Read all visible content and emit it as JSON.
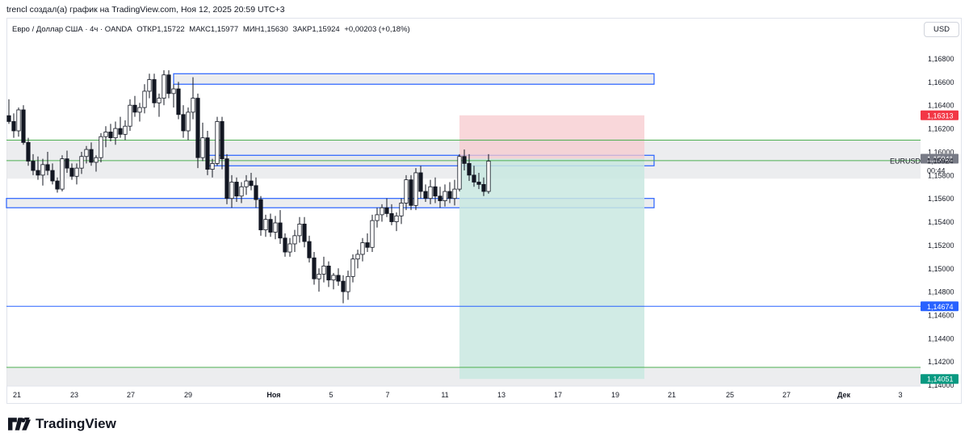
{
  "caption": "trencl создал(а) график на TradingView.com, Ноя 12, 2025 20:59 UTC+3",
  "legend": {
    "symbol": "Евро / Доллар США · 4ч · OANDA",
    "open": "ОТКР1,15722",
    "high": "МАКС1,15977",
    "low": "МИН1,15630",
    "close": "ЗАКР1,15924",
    "change": "+0,00203 (+0,18%)"
  },
  "currency_button": "USD",
  "brand": "TradingView",
  "colors": {
    "up": "#ffffff",
    "down": "#131722",
    "zone_border": "#2962ff",
    "zone_fill": "#e6e7ea",
    "green_line": "#4caf50",
    "blue_line": "#2962ff",
    "stop_fill": "#f7c9ce",
    "target_fill": "#c9e7e1"
  },
  "chart_data": {
    "type": "candlestick",
    "symbol": "EURUSD",
    "timeframe": "4ч",
    "ylim": [
      1.1399,
      1.1697
    ],
    "y_ticks": [
      "1,16800",
      "1,16600",
      "1,16400",
      "1,16200",
      "1,16000",
      "1,15800",
      "1,15600",
      "1,15400",
      "1,15200",
      "1,15000",
      "1,14800",
      "1,14600",
      "1,14400",
      "1,14200",
      "1,14000"
    ],
    "x_ticks": [
      "21",
      "23",
      "27",
      "29",
      "Ноя",
      "5",
      "7",
      "11",
      "13",
      "17",
      "19",
      "21",
      "25",
      "27",
      "Дек",
      "3"
    ],
    "price_labels": [
      {
        "text": "1,16313",
        "price": 1.16313,
        "color": "#f23645"
      },
      {
        "text": "1,15941",
        "price": 1.15941,
        "color": "#787b86"
      },
      {
        "text": "1,15924",
        "price": 1.15924,
        "color": "none"
      },
      {
        "text": "00:44",
        "price": 1.1584,
        "color": "none"
      },
      {
        "text": "1,14674",
        "price": 1.14674,
        "color": "#2962ff"
      },
      {
        "text": "1,14051",
        "price": 1.14051,
        "color": "#089981"
      }
    ],
    "last_price_label": "EURUSD",
    "horizontal_lines": [
      {
        "price": 1.161,
        "color": "#4caf50"
      },
      {
        "price": 1.15924,
        "color": "#4caf50"
      },
      {
        "price": 1.14674,
        "color": "#2962ff"
      },
      {
        "price": 1.1415,
        "color": "#4caf50"
      }
    ],
    "zones": [
      {
        "from": 1.1577,
        "to": 1.161,
        "x_end": "full",
        "bordered": false
      },
      {
        "from": 1.1658,
        "to": 1.1667,
        "x_end": 810,
        "x_start": 215,
        "bordered": true
      },
      {
        "from": 1.1588,
        "to": 1.1597,
        "x_end": 810,
        "x_start": 258,
        "bordered": true
      },
      {
        "from": 1.1552,
        "to": 1.156,
        "x_end": 810,
        "x_start": 8,
        "bordered": true
      },
      {
        "from": 1.1399,
        "to": 1.1415,
        "x_end": "full",
        "bordered": false
      }
    ],
    "position": {
      "entry": 1.15941,
      "stop": 1.16313,
      "target": 1.14051
    },
    "candles": [
      [
        1.1631,
        1.1645,
        1.1624,
        1.1626
      ],
      [
        1.1626,
        1.1633,
        1.1612,
        1.1618
      ],
      [
        1.1618,
        1.1638,
        1.1613,
        1.1636
      ],
      [
        1.1636,
        1.164,
        1.1606,
        1.1608
      ],
      [
        1.1608,
        1.1612,
        1.1588,
        1.1592
      ],
      [
        1.1592,
        1.1598,
        1.158,
        1.1584
      ],
      [
        1.1584,
        1.1596,
        1.1576,
        1.158
      ],
      [
        1.158,
        1.1594,
        1.1571,
        1.1589
      ],
      [
        1.1589,
        1.16,
        1.158,
        1.1584
      ],
      [
        1.1584,
        1.159,
        1.1572,
        1.1575
      ],
      [
        1.1575,
        1.1578,
        1.1565,
        1.1568
      ],
      [
        1.1568,
        1.1597,
        1.1566,
        1.1594
      ],
      [
        1.1594,
        1.1601,
        1.1582,
        1.1586
      ],
      [
        1.1586,
        1.159,
        1.1576,
        1.1579
      ],
      [
        1.1579,
        1.159,
        1.1572,
        1.1586
      ],
      [
        1.1586,
        1.16,
        1.1581,
        1.1596
      ],
      [
        1.1596,
        1.1605,
        1.159,
        1.1602
      ],
      [
        1.1602,
        1.1608,
        1.1588,
        1.1591
      ],
      [
        1.1591,
        1.1597,
        1.1583,
        1.1595
      ],
      [
        1.1595,
        1.1616,
        1.1591,
        1.1613
      ],
      [
        1.1613,
        1.1622,
        1.1604,
        1.1617
      ],
      [
        1.1617,
        1.1624,
        1.1609,
        1.1612
      ],
      [
        1.1612,
        1.1626,
        1.1606,
        1.162
      ],
      [
        1.162,
        1.163,
        1.1612,
        1.1615
      ],
      [
        1.1615,
        1.1627,
        1.161,
        1.1622
      ],
      [
        1.1622,
        1.1645,
        1.1618,
        1.164
      ],
      [
        1.164,
        1.1648,
        1.163,
        1.1634
      ],
      [
        1.1634,
        1.1642,
        1.1626,
        1.1638
      ],
      [
        1.1638,
        1.1658,
        1.1633,
        1.1652
      ],
      [
        1.1652,
        1.1667,
        1.1646,
        1.1662
      ],
      [
        1.1662,
        1.1667,
        1.1638,
        1.1642
      ],
      [
        1.1642,
        1.165,
        1.163,
        1.1646
      ],
      [
        1.1646,
        1.167,
        1.164,
        1.1666
      ],
      [
        1.1666,
        1.167,
        1.1646,
        1.165
      ],
      [
        1.165,
        1.1658,
        1.1638,
        1.1654
      ],
      [
        1.1654,
        1.166,
        1.1628,
        1.1632
      ],
      [
        1.1632,
        1.164,
        1.1612,
        1.1618
      ],
      [
        1.1618,
        1.1638,
        1.161,
        1.1634
      ],
      [
        1.1634,
        1.1664,
        1.1628,
        1.1646
      ],
      [
        1.1646,
        1.165,
        1.1586,
        1.1595
      ],
      [
        1.1595,
        1.1625,
        1.1592,
        1.1612
      ],
      [
        1.1612,
        1.1618,
        1.158,
        1.1585
      ],
      [
        1.1585,
        1.1594,
        1.1578,
        1.159
      ],
      [
        1.159,
        1.163,
        1.1588,
        1.1626
      ],
      [
        1.1626,
        1.163,
        1.1585,
        1.1594
      ],
      [
        1.1594,
        1.1598,
        1.1555,
        1.156
      ],
      [
        1.156,
        1.158,
        1.1552,
        1.1574
      ],
      [
        1.1574,
        1.1578,
        1.1557,
        1.1562
      ],
      [
        1.1562,
        1.1574,
        1.1556,
        1.157
      ],
      [
        1.157,
        1.158,
        1.1563,
        1.1575
      ],
      [
        1.1575,
        1.1582,
        1.1567,
        1.1571
      ],
      [
        1.1571,
        1.1578,
        1.1552,
        1.1559
      ],
      [
        1.1559,
        1.1562,
        1.1528,
        1.1533
      ],
      [
        1.1533,
        1.1546,
        1.1527,
        1.1542
      ],
      [
        1.1542,
        1.1547,
        1.1527,
        1.1531
      ],
      [
        1.1531,
        1.1545,
        1.1525,
        1.1539
      ],
      [
        1.1539,
        1.155,
        1.1521,
        1.1526
      ],
      [
        1.1526,
        1.153,
        1.151,
        1.1514
      ],
      [
        1.1514,
        1.1526,
        1.151,
        1.1521
      ],
      [
        1.1521,
        1.1533,
        1.1514,
        1.1528
      ],
      [
        1.1528,
        1.1544,
        1.1522,
        1.1538
      ],
      [
        1.1538,
        1.1544,
        1.1518,
        1.1523
      ],
      [
        1.1523,
        1.1528,
        1.1505,
        1.1509
      ],
      [
        1.1509,
        1.1514,
        1.1486,
        1.1491
      ],
      [
        1.1491,
        1.15,
        1.148,
        1.1495
      ],
      [
        1.1495,
        1.151,
        1.1488,
        1.1502
      ],
      [
        1.1502,
        1.1506,
        1.1484,
        1.149
      ],
      [
        1.149,
        1.1496,
        1.1482,
        1.1494
      ],
      [
        1.1494,
        1.15,
        1.1485,
        1.1489
      ],
      [
        1.1489,
        1.1494,
        1.147,
        1.148
      ],
      [
        1.148,
        1.1498,
        1.1473,
        1.1493
      ],
      [
        1.1493,
        1.1512,
        1.1488,
        1.1508
      ],
      [
        1.1508,
        1.1516,
        1.15,
        1.1512
      ],
      [
        1.1512,
        1.1526,
        1.1506,
        1.1522
      ],
      [
        1.1522,
        1.153,
        1.1514,
        1.1518
      ],
      [
        1.1518,
        1.1546,
        1.1514,
        1.1541
      ],
      [
        1.1541,
        1.1552,
        1.1535,
        1.1546
      ],
      [
        1.1546,
        1.1555,
        1.154,
        1.1552
      ],
      [
        1.1552,
        1.156,
        1.1544,
        1.1547
      ],
      [
        1.1547,
        1.1555,
        1.1537,
        1.154
      ],
      [
        1.154,
        1.1548,
        1.1532,
        1.1545
      ],
      [
        1.1545,
        1.156,
        1.1538,
        1.1556
      ],
      [
        1.1556,
        1.158,
        1.155,
        1.1576
      ],
      [
        1.1576,
        1.158,
        1.155,
        1.1554
      ],
      [
        1.1554,
        1.1586,
        1.155,
        1.1582
      ],
      [
        1.1582,
        1.1588,
        1.156,
        1.1566
      ],
      [
        1.1566,
        1.1572,
        1.1557,
        1.156
      ],
      [
        1.156,
        1.1576,
        1.1555,
        1.157
      ],
      [
        1.157,
        1.1578,
        1.1556,
        1.1562
      ],
      [
        1.1562,
        1.157,
        1.1552,
        1.1558
      ],
      [
        1.1558,
        1.1572,
        1.1553,
        1.1566
      ],
      [
        1.1566,
        1.1574,
        1.1556,
        1.156
      ],
      [
        1.156,
        1.1576,
        1.1554,
        1.1568
      ],
      [
        1.1568,
        1.1598,
        1.1566,
        1.1596
      ],
      [
        1.1596,
        1.1602,
        1.1584,
        1.159
      ],
      [
        1.159,
        1.1598,
        1.1575,
        1.158
      ],
      [
        1.158,
        1.1588,
        1.157,
        1.1574
      ],
      [
        1.1574,
        1.1582,
        1.1568,
        1.1572
      ],
      [
        1.1572,
        1.1578,
        1.1562,
        1.1566
      ],
      [
        1.1566,
        1.1598,
        1.1564,
        1.1592
      ]
    ]
  }
}
